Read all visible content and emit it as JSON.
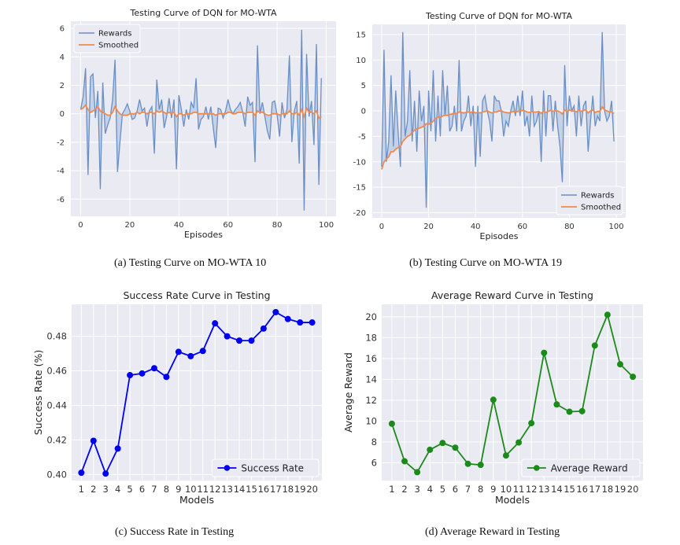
{
  "captions": {
    "a": "(a)  Testing Curve on MO-WTA 10",
    "b": "(b)  Testing Curve on MO-WTA 19",
    "c": "(c)  Success Rate in Testing",
    "d": "(d)  Average Reward in Testing"
  },
  "colors": {
    "panel_bg": "#eaeaf2",
    "grid": "#ffffff",
    "rewards_line": "#6a8fc4",
    "rewards_fill": "#b7c8e3",
    "smoothed": "#ee8a50",
    "success": "#0000ee",
    "avg_reward": "#1b8a1b"
  },
  "chart_data": [
    {
      "id": "a",
      "type": "line",
      "title": "Testing Curve of DQN for MO-WTA",
      "xlabel": "Episodes",
      "ylabel": "",
      "xlim": [
        -4,
        104
      ],
      "ylim": [
        -7.2,
        6.5
      ],
      "xticks": [
        0,
        20,
        40,
        60,
        80,
        100
      ],
      "yticks": [
        -6,
        -4,
        -2,
        0,
        2,
        4,
        6
      ],
      "legend": {
        "position": "top-left",
        "entries": [
          "Rewards",
          "Smoothed"
        ]
      },
      "series": [
        {
          "name": "Rewards",
          "values": [
            0.3,
            1.2,
            3.2,
            -4.3,
            2.6,
            2.8,
            -0.3,
            1.6,
            -5.3,
            2.2,
            -1.4,
            -0.8,
            -0.3,
            1.0,
            3.8,
            -4.1,
            -2.0,
            0.0,
            0.3,
            0.7,
            0.2,
            -0.4,
            -0.3,
            0.2,
            1.0,
            0.2,
            0.4,
            -0.9,
            0.2,
            0.5,
            -2.8,
            2.4,
            0.3,
            1.0,
            -1.0,
            -0.2,
            1.1,
            -0.3,
            1.0,
            -3.9,
            1.3,
            0.3,
            -0.9,
            0.3,
            -0.4,
            0.8,
            0.4,
            2.5,
            -1.1,
            -0.4,
            -0.2,
            0.5,
            -0.4,
            0.5,
            -1.0,
            -2.4,
            0.4,
            0.3,
            -0.3,
            0.2,
            1.0,
            0.3,
            0.0,
            0.3,
            0.5,
            0.8,
            0.1,
            -0.9,
            1.2,
            0.6,
            0.8,
            -3.4,
            4.8,
            0.0,
            0.8,
            -0.2,
            -1.2,
            -1.8,
            0.8,
            0.9,
            -0.1,
            -1.6,
            0.8,
            -0.3,
            0.3,
            4.1,
            -2.0,
            0.2,
            0.9,
            -3.5,
            5.9,
            -6.8,
            4.2,
            -0.2,
            0.9,
            -2.2,
            4.9,
            -5.0,
            2.5
          ]
        },
        {
          "name": "Smoothed",
          "values": [
            0.3,
            0.4,
            0.6,
            0.3,
            0.1,
            0.2,
            0.3,
            0.5,
            0.2,
            0.1,
            0.0,
            -0.1,
            -0.1,
            0.1,
            0.5,
            0.2,
            0.0,
            -0.1,
            -0.1,
            -0.1,
            0.0,
            0.0,
            0.0,
            0.1,
            0.0,
            0.1,
            0.1,
            0.0,
            0.1,
            0.1,
            0.0,
            0.2,
            0.1,
            0.2,
            0.1,
            0.0,
            0.1,
            0.0,
            0.1,
            -0.2,
            0.0,
            0.0,
            -0.1,
            0.0,
            0.0,
            0.0,
            0.1,
            0.1,
            0.0,
            0.0,
            0.0,
            0.0,
            0.0,
            0.0,
            0.0,
            -0.1,
            0.0,
            0.0,
            0.0,
            0.0,
            0.1,
            0.1,
            0.0,
            0.0,
            0.1,
            0.1,
            0.1,
            0.0,
            0.1,
            0.1,
            0.1,
            -0.1,
            0.2,
            0.1,
            0.1,
            0.0,
            -0.1,
            -0.1,
            0.0,
            0.0,
            0.0,
            -0.1,
            0.0,
            0.0,
            0.0,
            0.2,
            0.0,
            0.0,
            0.1,
            -0.1,
            0.3,
            -0.2,
            0.4,
            0.1,
            0.1,
            0.0,
            0.2,
            -0.3,
            -0.2
          ]
        }
      ]
    },
    {
      "id": "b",
      "type": "line",
      "title": "Testing Curve of DQN for MO-WTA",
      "xlabel": "Episodes",
      "ylabel": "",
      "xlim": [
        -4,
        104
      ],
      "ylim": [
        -21,
        17
      ],
      "xticks": [
        0,
        20,
        40,
        60,
        80,
        100
      ],
      "yticks": [
        -20,
        -15,
        -10,
        -5,
        0,
        5,
        10,
        15
      ],
      "legend": {
        "position": "bottom-right",
        "entries": [
          "Rewards",
          "Smoothed"
        ]
      },
      "series": [
        {
          "name": "Rewards",
          "values": [
            -11,
            12,
            -10,
            -6,
            7,
            -7,
            4,
            -4,
            -11,
            15.5,
            -5,
            -2,
            8,
            -6,
            2,
            -8,
            4,
            -2,
            1,
            -19,
            4,
            -4,
            8,
            -6,
            3,
            -5,
            8,
            -1,
            5,
            -4,
            -3,
            1,
            -4,
            10,
            -4,
            -2,
            -1,
            3,
            -3,
            1,
            -11,
            1,
            -9,
            2,
            3,
            0,
            -2,
            -6,
            3,
            2,
            2,
            0,
            -5,
            -2,
            -3,
            0,
            2,
            -1,
            3,
            -1,
            4,
            -3,
            -1,
            -5,
            3,
            -3,
            -2,
            0,
            -10,
            4,
            -5,
            3,
            3,
            -4,
            2,
            -3,
            -7,
            -14,
            9,
            -3,
            3,
            0,
            1,
            -5,
            3,
            -3,
            1,
            2,
            -8,
            -2,
            3,
            -3,
            -1,
            -2,
            15.5,
            0,
            -2,
            -1,
            2,
            -6
          ]
        },
        {
          "name": "Smoothed",
          "values": [
            -11.5,
            -10,
            -9.5,
            -9,
            -8,
            -8,
            -7.5,
            -7.2,
            -7,
            -6,
            -5.5,
            -5,
            -4.8,
            -4.2,
            -3.8,
            -3.5,
            -3.4,
            -3.2,
            -3,
            -2.5,
            -2.6,
            -2.4,
            -2,
            -1.5,
            -1.2,
            -1.2,
            -1,
            -0.8,
            -0.9,
            -0.7,
            -0.6,
            -0.5,
            -0.5,
            -0.2,
            -0.3,
            -0.4,
            -0.3,
            -0.2,
            -0.3,
            -0.1,
            -0.4,
            -0.3,
            -0.4,
            -0.2,
            -0.1,
            0,
            -0.2,
            -0.4,
            -0.2,
            -0.2,
            0,
            0,
            -0.2,
            -0.3,
            -0.4,
            -0.3,
            -0.1,
            -0.2,
            -0.1,
            0,
            0.1,
            0,
            -0.2,
            -0.3,
            -0.1,
            -0.2,
            -0.2,
            -0.1,
            -0.5,
            0,
            -0.3,
            -0.1,
            0.1,
            -0.1,
            0.1,
            0,
            -0.2,
            -0.6,
            0.2,
            -0.1,
            0.2,
            0,
            0,
            -0.2,
            0.1,
            -0.1,
            0.1,
            0.2,
            -0.4,
            0,
            0.2,
            -0.3,
            -0.1,
            -0.1,
            0.8,
            0.2,
            0,
            -0.2,
            -0.2,
            -0.5
          ]
        }
      ]
    },
    {
      "id": "c",
      "type": "line",
      "title": "Success Rate Curve in Testing",
      "xlabel": "Models",
      "ylabel": "Success Rate (%)",
      "xlim": [
        0.2,
        20.8
      ],
      "ylim": [
        0.3965,
        0.4985
      ],
      "categories": [
        "1",
        "2",
        "3",
        "4",
        "5",
        "6",
        "7",
        "8",
        "9",
        "10",
        "11",
        "12",
        "13",
        "14",
        "15",
        "16",
        "17",
        "18",
        "19",
        "20"
      ],
      "yticks": [
        0.4,
        0.42,
        0.44,
        0.46,
        0.48
      ],
      "ytick_labels": [
        "0.40",
        "0.42",
        "0.44",
        "0.46",
        "0.48"
      ],
      "legend": {
        "position": "bottom-right",
        "entries": [
          "Success Rate"
        ]
      },
      "series": [
        {
          "name": "Success Rate",
          "values": [
            0.401,
            0.4195,
            0.4005,
            0.415,
            0.4575,
            0.4585,
            0.4615,
            0.4565,
            0.471,
            0.4685,
            0.4715,
            0.4875,
            0.48,
            0.4775,
            0.4775,
            0.4845,
            0.494,
            0.49,
            0.488,
            0.488
          ]
        }
      ]
    },
    {
      "id": "d",
      "type": "line",
      "title": "Average Reward Curve in Testing",
      "xlabel": "Models",
      "ylabel": "Average Reward",
      "xlim": [
        0.2,
        20.8
      ],
      "ylim": [
        4.3,
        21.2
      ],
      "categories": [
        "1",
        "2",
        "3",
        "4",
        "5",
        "6",
        "7",
        "8",
        "9",
        "10",
        "11",
        "12",
        "13",
        "14",
        "15",
        "16",
        "17",
        "18",
        "19",
        "20"
      ],
      "yticks": [
        6,
        8,
        10,
        12,
        14,
        16,
        18,
        20
      ],
      "ytick_labels": [
        "6",
        "8",
        "10",
        "12",
        "14",
        "16",
        "18",
        "20"
      ],
      "legend": {
        "position": "bottom-right",
        "entries": [
          "Average Reward"
        ]
      },
      "series": [
        {
          "name": "Average Reward",
          "values": [
            9.75,
            6.15,
            5.1,
            7.25,
            7.9,
            7.45,
            5.9,
            5.8,
            12.05,
            6.7,
            7.95,
            9.8,
            16.55,
            11.6,
            10.9,
            10.95,
            17.25,
            20.2,
            15.45,
            14.25
          ]
        }
      ]
    }
  ]
}
